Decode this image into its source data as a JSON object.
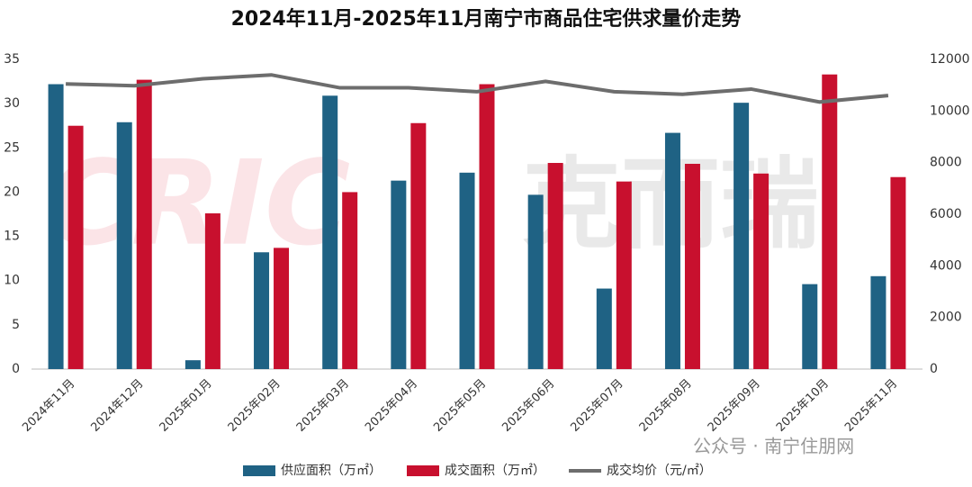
{
  "chart_data": {
    "type": "bar_line",
    "title": "2024年11月-2025年11月南宁市商品住宅供求量价走势",
    "categories": [
      "2024年11月",
      "2024年12月",
      "2025年01月",
      "2025年02月",
      "2025年03月",
      "2025年04月",
      "2025年05月",
      "2025年06月",
      "2025年07月",
      "2025年08月",
      "2025年09月",
      "2025年10月",
      "2025年11月"
    ],
    "series": [
      {
        "name": "供应面积（万㎡）",
        "color": "#1f6284",
        "type": "bar",
        "values": [
          32.2,
          27.9,
          1.0,
          13.2,
          30.9,
          21.3,
          22.2,
          19.7,
          9.1,
          26.7,
          30.1,
          9.6,
          10.5
        ]
      },
      {
        "name": "成交面积（万㎡）",
        "color": "#c8102e",
        "type": "bar",
        "values": [
          27.5,
          32.7,
          17.6,
          13.7,
          20.0,
          27.8,
          32.2,
          23.3,
          21.2,
          23.2,
          22.1,
          33.3,
          21.7
        ]
      },
      {
        "name": "成交均价（元/㎡）",
        "color": "#6d6d6d",
        "type": "line",
        "axis": "y2",
        "values": [
          11050,
          10980,
          11250,
          11400,
          10900,
          10900,
          10750,
          11150,
          10750,
          10650,
          10850,
          10350,
          10600
        ]
      }
    ],
    "ylim": [
      0,
      35
    ],
    "yticks": [
      0,
      5,
      10,
      15,
      20,
      25,
      30,
      35
    ],
    "y2lim": [
      0,
      12000
    ],
    "y2ticks": [
      0,
      2000,
      4000,
      6000,
      8000,
      10000,
      12000
    ],
    "legend": "bottom",
    "annotations": [
      "CRIC",
      "克而瑞",
      "公众号 · 南宁住朋网"
    ]
  }
}
